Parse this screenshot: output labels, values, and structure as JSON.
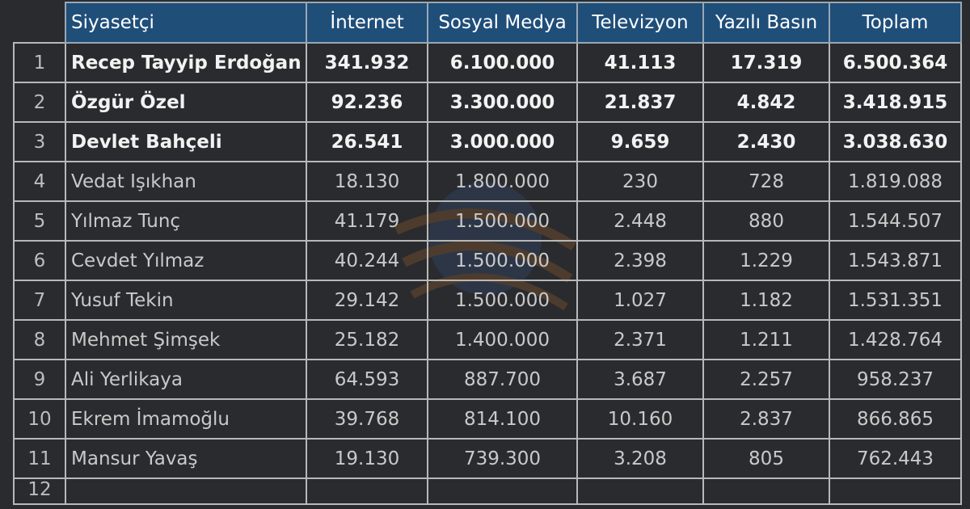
{
  "headers": [
    "Siyasetçi",
    "İnternet",
    "Sosyal Medya",
    "Televizyon",
    "Yazılı Basın",
    "Toplam"
  ],
  "rows": [
    {
      "rank": "1",
      "name": "Recep Tayyip Erdoğan",
      "internet": "341.932",
      "social": "6.100.000",
      "tv": "41.113",
      "print": "17.319",
      "total": "6.500.364"
    },
    {
      "rank": "2",
      "name": "Özgür Özel",
      "internet": "92.236",
      "social": "3.300.000",
      "tv": "21.837",
      "print": "4.842",
      "total": "3.418.915"
    },
    {
      "rank": "3",
      "name": "Devlet Bahçeli",
      "internet": "26.541",
      "social": "3.000.000",
      "tv": "9.659",
      "print": "2.430",
      "total": "3.038.630"
    },
    {
      "rank": "4",
      "name": "Vedat Işıkhan",
      "internet": "18.130",
      "social": "1.800.000",
      "tv": "230",
      "print": "728",
      "total": "1.819.088"
    },
    {
      "rank": "5",
      "name": "Yılmaz Tunç",
      "internet": "41.179",
      "social": "1.500.000",
      "tv": "2.448",
      "print": "880",
      "total": "1.544.507"
    },
    {
      "rank": "6",
      "name": "Cevdet Yılmaz",
      "internet": "40.244",
      "social": "1.500.000",
      "tv": "2.398",
      "print": "1.229",
      "total": "1.543.871"
    },
    {
      "rank": "7",
      "name": "Yusuf Tekin",
      "internet": "29.142",
      "social": "1.500.000",
      "tv": "1.027",
      "print": "1.182",
      "total": "1.531.351"
    },
    {
      "rank": "8",
      "name": "Mehmet Şimşek",
      "internet": "25.182",
      "social": "1.400.000",
      "tv": "2.371",
      "print": "1.211",
      "total": "1.428.764"
    },
    {
      "rank": "9",
      "name": "Ali Yerlikaya",
      "internet": "64.593",
      "social": "887.700",
      "tv": "3.687",
      "print": "2.257",
      "total": "958.237"
    },
    {
      "rank": "10",
      "name": "Ekrem İmamoğlu",
      "internet": "39.768",
      "social": "814.100",
      "tv": "10.160",
      "print": "2.837",
      "total": "866.865"
    },
    {
      "rank": "11",
      "name": "Mansur Yavaş",
      "internet": "19.130",
      "social": "739.300",
      "tv": "3.208",
      "print": "805",
      "total": "762.443"
    },
    {
      "rank": "12",
      "name": "",
      "internet": "",
      "social": "",
      "tv": "",
      "print": "",
      "total": ""
    }
  ],
  "colors": {
    "header_bg": "#1f4e79",
    "page_bg": "#2a2b2e",
    "grid": "#b8b8b8",
    "bold_text": "#f2f2f2",
    "text": "#c9c9c9"
  }
}
